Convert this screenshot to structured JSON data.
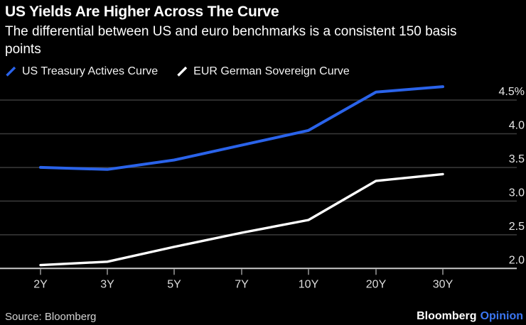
{
  "header": {
    "title": "US Yields Are Higher Across The Curve",
    "subtitle": "The differential between US and euro benchmarks is a consistent 150 basis points"
  },
  "chart_data": {
    "type": "line",
    "title": "US Yields Are Higher Across The Curve",
    "subtitle": "The differential between US and euro benchmarks is a consistent 150 basis points",
    "categories": [
      "2Y",
      "3Y",
      "5Y",
      "7Y",
      "10Y",
      "20Y",
      "30Y"
    ],
    "series": [
      {
        "name": "US Treasury Actives Curve",
        "color": "#2a63ea",
        "values": [
          3.5,
          3.47,
          3.61,
          3.83,
          4.05,
          4.62,
          4.7
        ]
      },
      {
        "name": "EUR German Sovereign Curve",
        "color": "#ffffff",
        "values": [
          2.05,
          2.1,
          2.32,
          2.53,
          2.72,
          3.3,
          3.4
        ]
      }
    ],
    "unit": "%",
    "xlabel": "",
    "ylabel": "",
    "ylim": [
      2.0,
      4.77
    ],
    "y_ticks": [
      {
        "value": 4.5,
        "label": "4.5%"
      },
      {
        "value": 4.0,
        "label": "4.0"
      },
      {
        "value": 3.5,
        "label": "3.5"
      },
      {
        "value": 3.0,
        "label": "3.0"
      },
      {
        "value": 2.5,
        "label": "2.5"
      },
      {
        "value": 2.0,
        "label": "2.0"
      }
    ],
    "grid": "horizontal",
    "legend_position": "top-left"
  },
  "footer": {
    "source": "Source: Bloomberg",
    "brand": "Bloomberg",
    "brand_suffix": "Opinion"
  },
  "colors": {
    "background": "#000000",
    "accent_blue": "#2a63ea",
    "brand_blue": "#3b76f2",
    "gridline": "#3b3b3b",
    "axis_line": "#c9c9c9",
    "tick": "#999999",
    "axis_label": "#e6e6e6",
    "white_series": "#ffffff"
  }
}
